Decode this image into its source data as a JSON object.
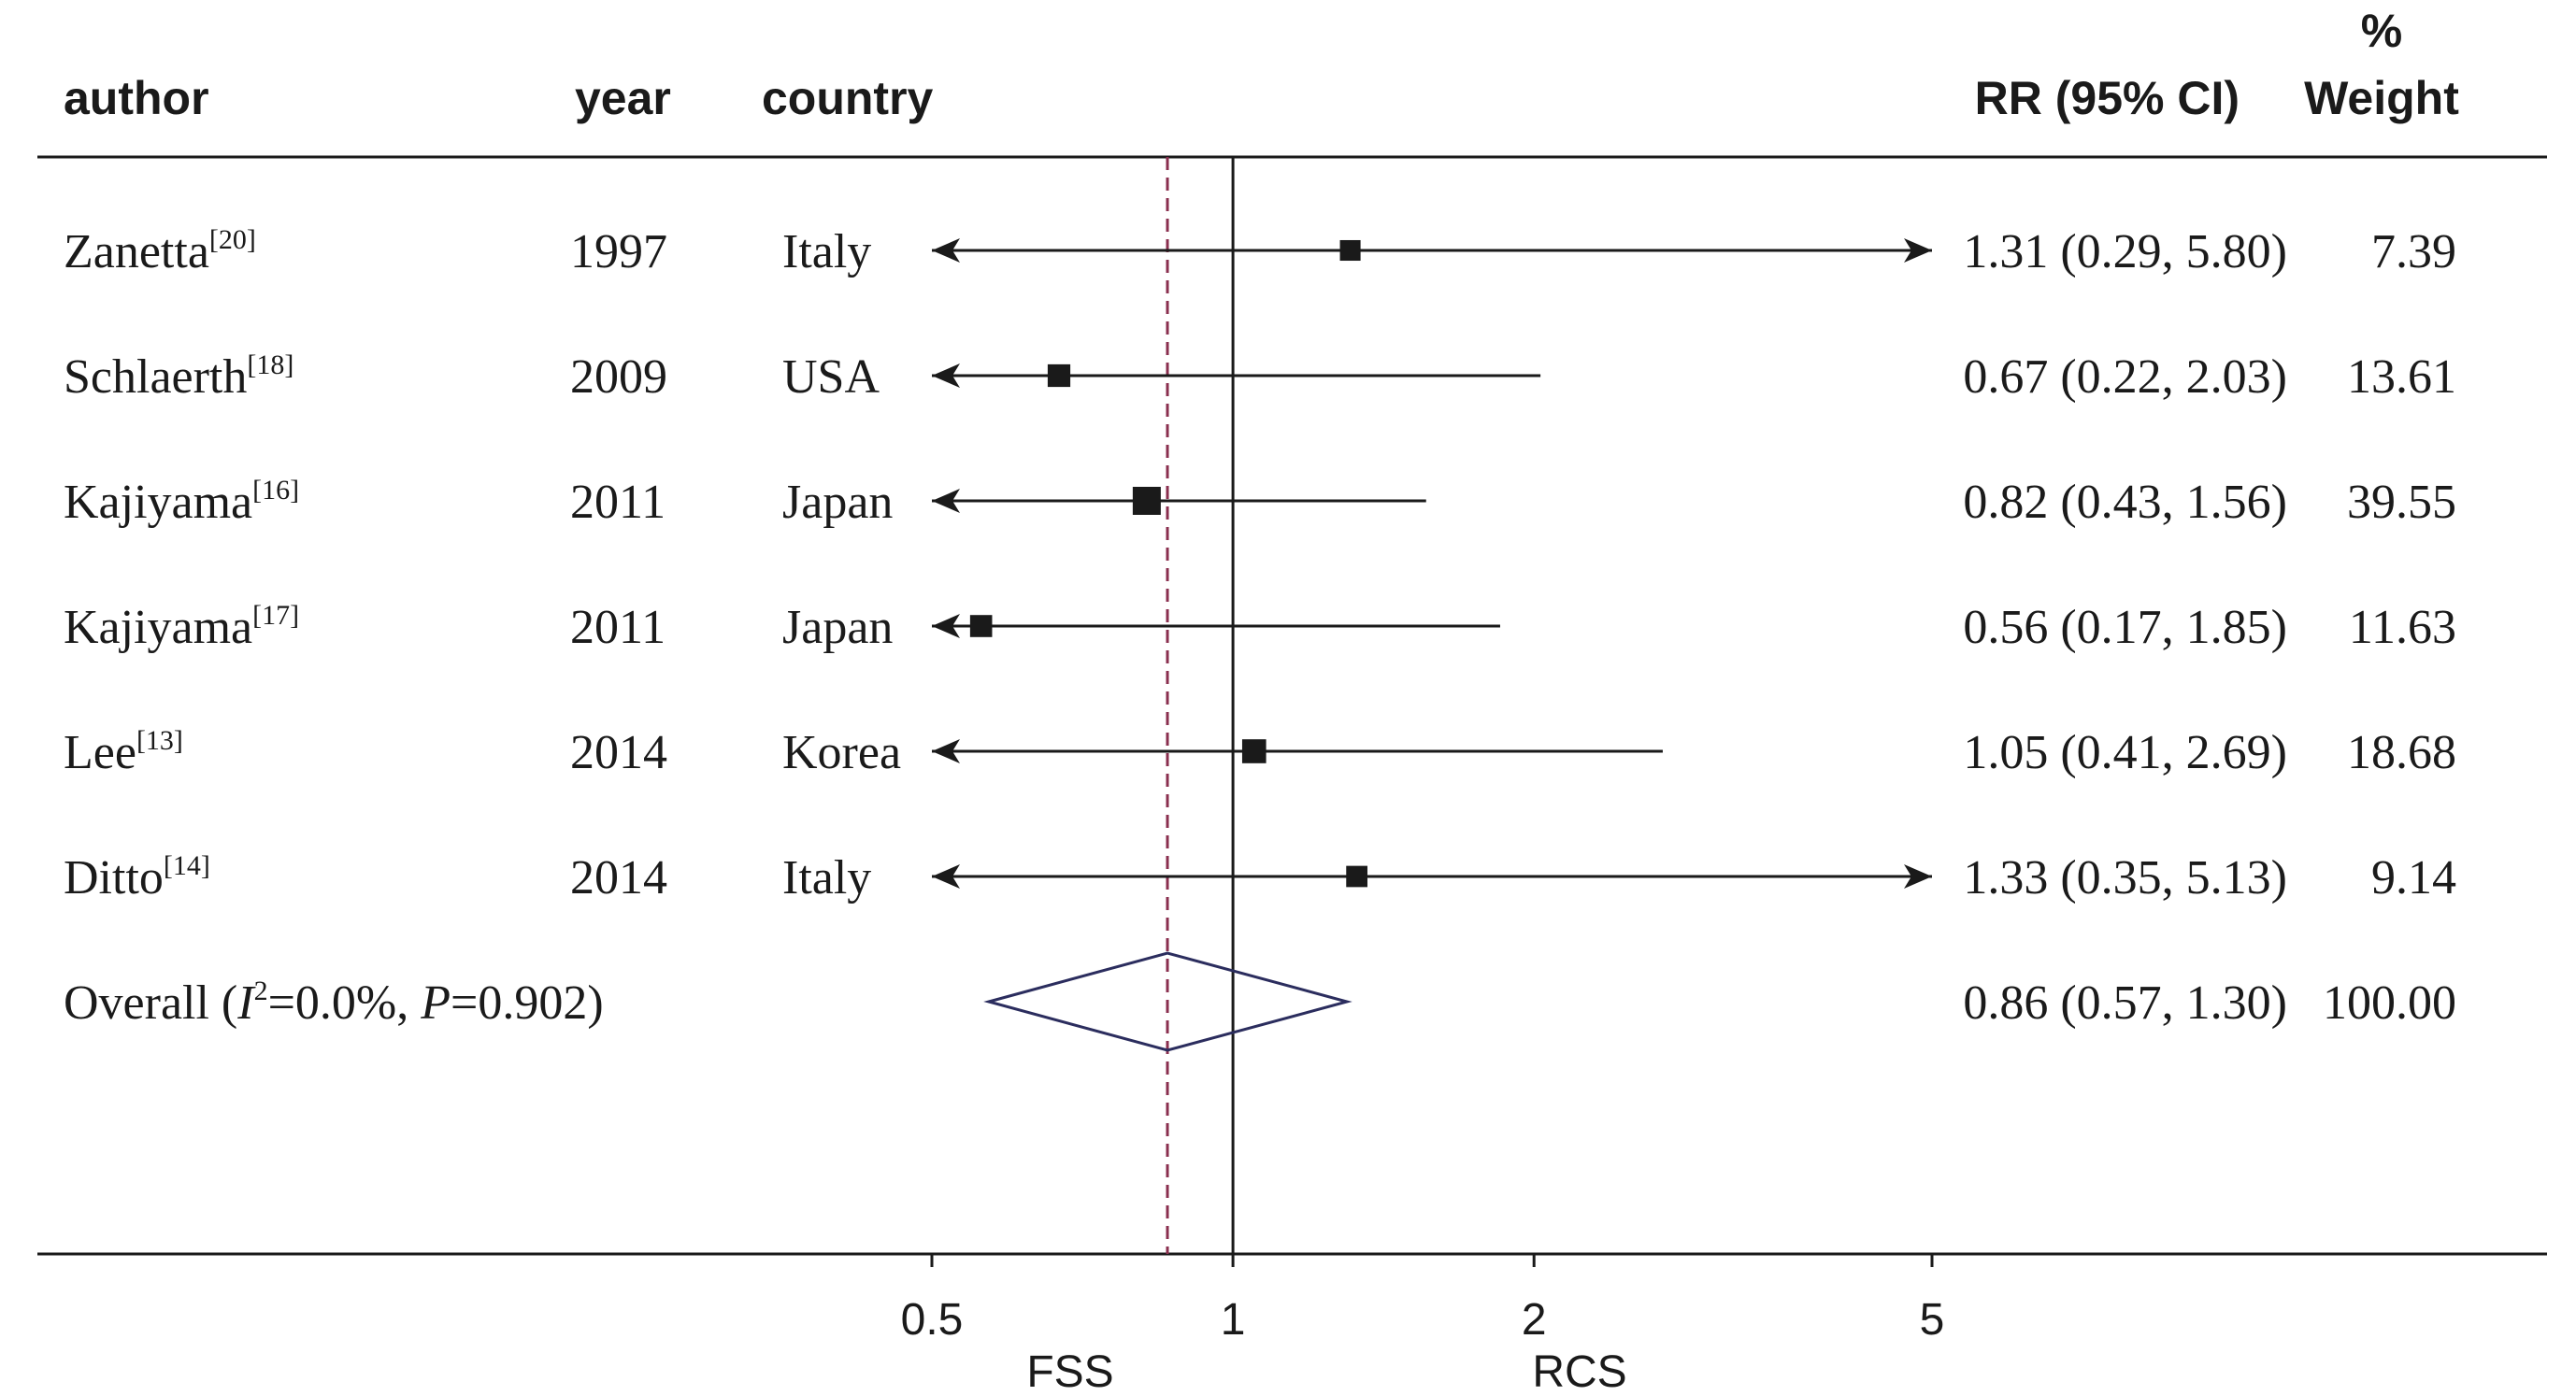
{
  "chart_data": {
    "type": "forest",
    "columns": {
      "author": "author",
      "year": "year",
      "country": "country",
      "rr": "RR (95% CI)",
      "weight_line1": "%",
      "weight_line2": "Weight"
    },
    "studies": [
      {
        "author": "Zanetta",
        "ref": "[20]",
        "year": "1997",
        "country": "Italy",
        "rr": 1.31,
        "lo": 0.29,
        "hi": 5.8,
        "rr_text": "1.31 (0.29, 5.80)",
        "weight": 7.39,
        "weight_text": "7.39"
      },
      {
        "author": "Schlaerth",
        "ref": "[18]",
        "year": "2009",
        "country": "USA",
        "rr": 0.67,
        "lo": 0.22,
        "hi": 2.03,
        "rr_text": "0.67 (0.22, 2.03)",
        "weight": 13.61,
        "weight_text": "13.61"
      },
      {
        "author": "Kajiyama",
        "ref": "[16]",
        "year": "2011",
        "country": "Japan",
        "rr": 0.82,
        "lo": 0.43,
        "hi": 1.56,
        "rr_text": "0.82 (0.43, 1.56)",
        "weight": 39.55,
        "weight_text": "39.55"
      },
      {
        "author": "Kajiyama",
        "ref": "[17]",
        "year": "2011",
        "country": "Japan",
        "rr": 0.56,
        "lo": 0.17,
        "hi": 1.85,
        "rr_text": "0.56 (0.17, 1.85)",
        "weight": 11.63,
        "weight_text": "11.63"
      },
      {
        "author": "Lee",
        "ref": "[13]",
        "year": "2014",
        "country": "Korea",
        "rr": 1.05,
        "lo": 0.41,
        "hi": 2.69,
        "rr_text": "1.05 (0.41, 2.69)",
        "weight": 18.68,
        "weight_text": "18.68"
      },
      {
        "author": "Ditto",
        "ref": "[14]",
        "year": "2014",
        "country": "Italy",
        "rr": 1.33,
        "lo": 0.35,
        "hi": 5.13,
        "rr_text": "1.33 (0.35, 5.13)",
        "weight": 9.14,
        "weight_text": "9.14"
      }
    ],
    "overall": {
      "label_prefix": "Overall  (",
      "i2_symbol": "I",
      "i2_sup": "2",
      "i2_value": "=0.0%, ",
      "p_symbol": "P",
      "p_value": "=0.902)",
      "rr": 0.86,
      "lo": 0.57,
      "hi": 1.3,
      "rr_text": "0.86 (0.57, 1.30)",
      "weight_text": "100.00"
    },
    "x_axis": {
      "scale": "log",
      "range": [
        0.5,
        5
      ],
      "ticks": [
        0.5,
        1,
        2,
        5
      ],
      "tick_labels": [
        "0.5",
        "1",
        "2",
        "5"
      ],
      "reference_line": 1,
      "left_label": "FSS",
      "right_label": "RCS"
    },
    "colors": {
      "ink": "#1a1a1a",
      "overall_diamond": "#2b2d5e",
      "overall_line": "#8a2f4f"
    }
  }
}
